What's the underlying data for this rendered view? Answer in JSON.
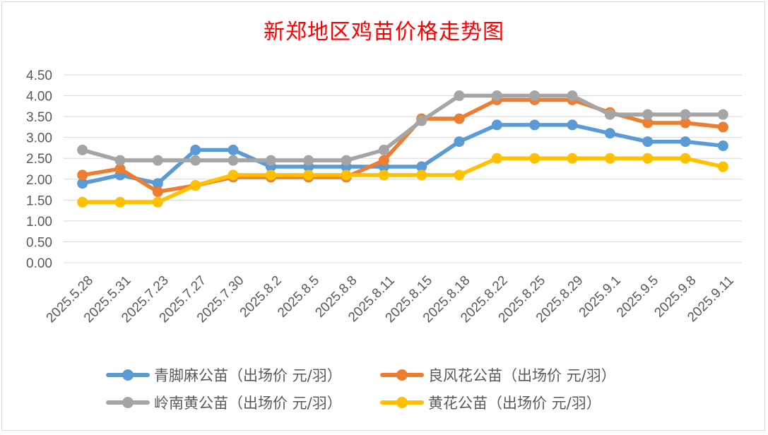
{
  "chart_data": {
    "type": "line",
    "title": "新郑地区鸡苗价格走势图",
    "xlabel": "",
    "ylabel": "",
    "ylim": [
      0,
      4.5
    ],
    "yticks": [
      "0.00",
      "0.50",
      "1.00",
      "1.50",
      "2.00",
      "2.50",
      "3.00",
      "3.50",
      "4.00",
      "4.50"
    ],
    "grid": true,
    "legend_position": "bottom",
    "categories": [
      "2025.5.28",
      "2025.5.31",
      "2025.7.23",
      "2025.7.27",
      "2025.7.30",
      "2025.8.2",
      "2025.8.5",
      "2025.8.8",
      "2025.8.11",
      "2025.8.15",
      "2025.8.18",
      "2025.8.22",
      "2025.8.25",
      "2025.8.29",
      "2025.9.1",
      "2025.9.5",
      "2025.9.8",
      "2025.9.11"
    ],
    "series": [
      {
        "name": "青脚麻公苗（出场价 元/羽）",
        "color": "#5b9bd5",
        "values": [
          1.9,
          2.1,
          1.9,
          2.7,
          2.7,
          2.3,
          2.3,
          2.3,
          2.3,
          2.3,
          2.9,
          3.3,
          3.3,
          3.3,
          3.1,
          2.9,
          2.9,
          2.8
        ]
      },
      {
        "name": "良风花公苗（出场价 元/羽）",
        "color": "#ed7d31",
        "values": [
          2.1,
          2.25,
          1.7,
          1.85,
          2.05,
          2.05,
          2.05,
          2.05,
          2.45,
          3.45,
          3.45,
          3.9,
          3.9,
          3.9,
          3.6,
          3.35,
          3.35,
          3.25
        ]
      },
      {
        "name": "岭南黄公苗（出场价 元/羽）",
        "color": "#a5a5a5",
        "values": [
          2.7,
          2.45,
          2.45,
          2.45,
          2.45,
          2.45,
          2.45,
          2.45,
          2.7,
          3.4,
          4.0,
          4.0,
          4.0,
          4.0,
          3.55,
          3.55,
          3.55,
          3.55
        ]
      },
      {
        "name": "黄花公苗（出场价 元/羽）",
        "color": "#ffc000",
        "values": [
          1.45,
          1.45,
          1.45,
          1.85,
          2.1,
          2.1,
          2.1,
          2.1,
          2.1,
          2.1,
          2.1,
          2.5,
          2.5,
          2.5,
          2.5,
          2.5,
          2.5,
          2.3
        ]
      }
    ]
  }
}
